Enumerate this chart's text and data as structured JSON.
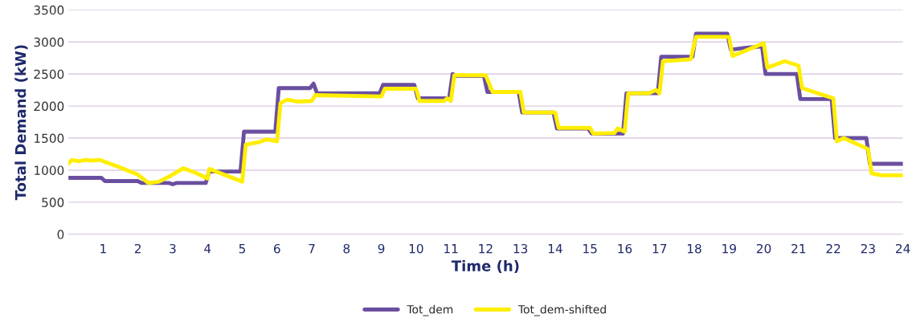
{
  "chart_data": {
    "type": "line",
    "xlabel": "Time (h)",
    "ylabel": "Total Demand (kW)",
    "xlim": [
      0,
      24
    ],
    "xticks": [
      1,
      2,
      3,
      4,
      5,
      6,
      7,
      8,
      9,
      10,
      11,
      12,
      13,
      14,
      15,
      16,
      17,
      18,
      19,
      20,
      21,
      22,
      23,
      24
    ],
    "ylim": [
      0,
      3500
    ],
    "yticks": [
      0,
      500,
      1000,
      1500,
      2000,
      2500,
      3000,
      3500
    ],
    "grid": "y",
    "legend": "bottom",
    "marker": "none",
    "line_style": "solid",
    "series": [
      {
        "name": "Tot_dem",
        "color": "#6a4fa0",
        "x": [
          0,
          0.95,
          1.05,
          2.0,
          2.1,
          2.9,
          3.0,
          3.1,
          3.95,
          4.05,
          4.95,
          5.05,
          5.95,
          6.05,
          6.95,
          7.05,
          7.15,
          8.95,
          9.05,
          9.95,
          10.05,
          10.95,
          11.05,
          11.15,
          11.95,
          12.05,
          12.95,
          13.05,
          13.95,
          14.05,
          14.95,
          15.05,
          15.95,
          16.05,
          16.95,
          17.05,
          17.95,
          18.05,
          18.95,
          19.05,
          19.5,
          19.95,
          20.05,
          20.95,
          21.05,
          21.95,
          22.05,
          22.95,
          23.05,
          24
        ],
        "values": [
          880,
          880,
          830,
          830,
          800,
          800,
          780,
          800,
          800,
          980,
          980,
          1600,
          1600,
          2280,
          2280,
          2350,
          2200,
          2200,
          2330,
          2330,
          2120,
          2120,
          2500,
          2470,
          2470,
          2220,
          2220,
          1900,
          1900,
          1650,
          1650,
          1570,
          1570,
          2200,
          2200,
          2770,
          2770,
          3130,
          3130,
          2880,
          2910,
          2930,
          2500,
          2500,
          2110,
          2110,
          1500,
          1500,
          1100,
          1100
        ]
      },
      {
        "name": "Tot_dem-shifted",
        "color": "#ffee00",
        "x": [
          0,
          0.1,
          0.3,
          0.5,
          0.7,
          0.9,
          1.0,
          1.5,
          2.0,
          2.3,
          2.6,
          2.9,
          3.3,
          3.7,
          4.0,
          4.05,
          5.0,
          5.1,
          5.5,
          5.7,
          6.0,
          6.1,
          6.3,
          6.6,
          7.0,
          7.1,
          9.0,
          9.1,
          10.0,
          10.1,
          10.8,
          10.9,
          11.0,
          11.1,
          12.0,
          12.2,
          13.0,
          13.1,
          14.0,
          14.1,
          15.0,
          15.1,
          15.7,
          15.8,
          16.0,
          16.1,
          16.7,
          16.9,
          17.0,
          17.1,
          17.9,
          18.05,
          19.0,
          19.1,
          20.0,
          20.1,
          20.6,
          21.0,
          21.1,
          22.0,
          22.1,
          22.3,
          23.0,
          23.1,
          23.4,
          24
        ],
        "values": [
          1100,
          1160,
          1140,
          1160,
          1150,
          1160,
          1140,
          1040,
          930,
          800,
          820,
          900,
          1030,
          950,
          870,
          1020,
          820,
          1400,
          1440,
          1480,
          1450,
          2050,
          2100,
          2070,
          2080,
          2170,
          2150,
          2270,
          2270,
          2080,
          2080,
          2120,
          2080,
          2480,
          2480,
          2220,
          2220,
          1900,
          1900,
          1660,
          1660,
          1570,
          1580,
          1650,
          1600,
          2200,
          2200,
          2250,
          2200,
          2700,
          2730,
          3080,
          3080,
          2780,
          2980,
          2600,
          2700,
          2630,
          2280,
          2120,
          1450,
          1500,
          1330,
          950,
          920,
          920
        ]
      }
    ]
  }
}
